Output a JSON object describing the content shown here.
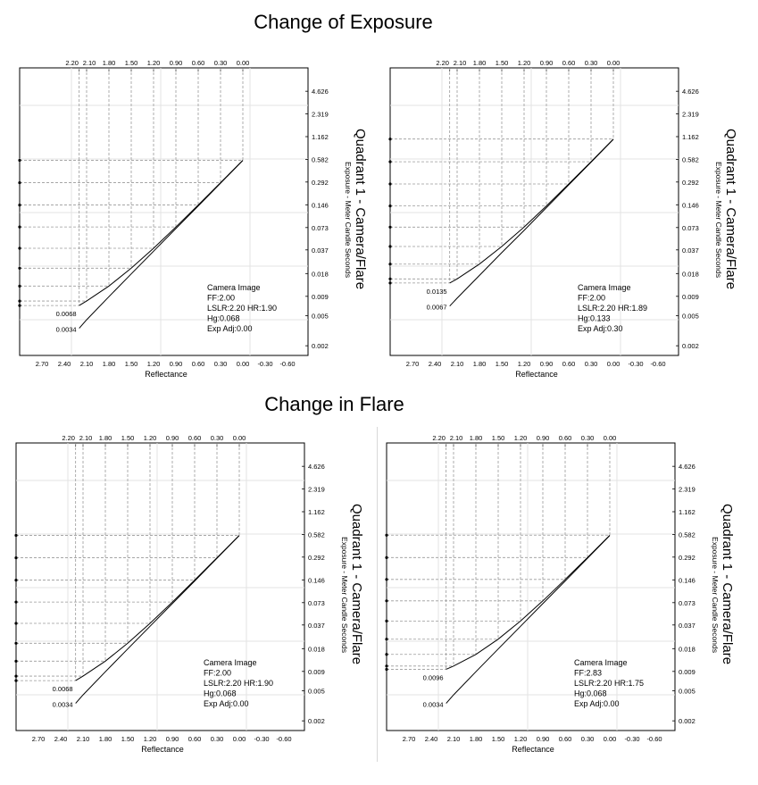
{
  "headings": {
    "top": "Change of Exposure",
    "middle": "Change in Flare"
  },
  "chart_data": [
    {
      "type": "line",
      "title": "Quadrant 1 - Camera/Flare",
      "xlabel": "Reflectance",
      "ylabel": "Exposure - Meter Candle Seconds",
      "x_axis": "reversed",
      "x_ticks_bottom": [
        "2.70",
        "2.40",
        "2.10",
        "1.80",
        "1.50",
        "1.20",
        "0.90",
        "0.60",
        "0.30",
        "0.00",
        "-0.30",
        "-0.60"
      ],
      "x_ticks_top": [
        "2.20",
        "2.10",
        "1.80",
        "1.50",
        "1.20",
        "0.90",
        "0.60",
        "0.30",
        "0.00"
      ],
      "y_scale": "log",
      "y_ticks": [
        "4.626",
        "2.319",
        "1.162",
        "0.582",
        "0.292",
        "0.146",
        "0.073",
        "0.037",
        "0.018",
        "0.009",
        "0.005",
        "0.002"
      ],
      "series": [
        {
          "x": [
            2.2,
            2.1,
            1.8,
            1.5,
            1.2,
            0.9,
            0.6,
            0.3,
            0.0
          ],
          "y": [
            0.0034,
            0.0044,
            0.0089,
            0.0178,
            0.0355,
            0.0709,
            0.141,
            0.282,
            0.563
          ]
        },
        {
          "x": [
            2.2,
            2.1,
            1.8,
            1.5,
            1.2,
            0.9,
            0.6,
            0.3,
            0.0
          ],
          "y": [
            0.0068,
            0.0078,
            0.0123,
            0.0212,
            0.0389,
            0.0743,
            0.145,
            0.286,
            0.566
          ]
        }
      ],
      "value_labels": [
        "0.0068",
        "0.0034"
      ],
      "info": [
        "Camera Image",
        "FF:2.00",
        "LSLR:2.20 HR:1.90",
        "Hg:0.068",
        "Exp Adj:0.00"
      ]
    },
    {
      "type": "line",
      "title": "Quadrant 1 - Camera/Flare",
      "xlabel": "Reflectance",
      "ylabel": "Exposure - Meter Candle Seconds",
      "x_axis": "reversed",
      "x_ticks_bottom": [
        "2.70",
        "2.40",
        "2.10",
        "1.80",
        "1.50",
        "1.20",
        "0.90",
        "0.60",
        "0.30",
        "0.00",
        "-0.30",
        "-0.60"
      ],
      "x_ticks_top": [
        "2.20",
        "2.10",
        "1.80",
        "1.50",
        "1.20",
        "0.90",
        "0.60",
        "0.30",
        "0.00"
      ],
      "y_scale": "log",
      "y_ticks": [
        "4.626",
        "2.319",
        "1.162",
        "0.582",
        "0.292",
        "0.146",
        "0.073",
        "0.037",
        "0.018",
        "0.009",
        "0.005",
        "0.002"
      ],
      "series": [
        {
          "x": [
            2.2,
            2.1,
            1.8,
            1.5,
            1.2,
            0.9,
            0.6,
            0.3,
            0.0
          ],
          "y": [
            0.0067,
            0.0085,
            0.017,
            0.034,
            0.067,
            0.134,
            0.268,
            0.534,
            1.07
          ]
        },
        {
          "x": [
            2.2,
            2.1,
            1.8,
            1.5,
            1.2,
            0.9,
            0.6,
            0.3,
            0.0
          ],
          "y": [
            0.0135,
            0.0153,
            0.024,
            0.041,
            0.074,
            0.141,
            0.275,
            0.541,
            1.08
          ]
        }
      ],
      "value_labels": [
        "0.0135",
        "0.0067"
      ],
      "info": [
        "Camera Image",
        "FF:2.00",
        "LSLR:2.20 HR:1.89",
        "Hg:0.133",
        "Exp Adj:0.30"
      ]
    },
    {
      "type": "line",
      "title": "Quadrant 1 - Camera/Flare",
      "xlabel": "Reflectance",
      "ylabel": "Exposure - Meter Candle Seconds",
      "x_axis": "reversed",
      "x_ticks_bottom": [
        "2.70",
        "2.40",
        "2.10",
        "1.80",
        "1.50",
        "1.20",
        "0.90",
        "0.60",
        "0.30",
        "0.00",
        "-0.30",
        "-0.60"
      ],
      "x_ticks_top": [
        "2.20",
        "2.10",
        "1.80",
        "1.50",
        "1.20",
        "0.90",
        "0.60",
        "0.30",
        "0.00"
      ],
      "y_scale": "log",
      "y_ticks": [
        "4.626",
        "2.319",
        "1.162",
        "0.582",
        "0.292",
        "0.146",
        "0.073",
        "0.037",
        "0.018",
        "0.009",
        "0.005",
        "0.002"
      ],
      "series": [
        {
          "x": [
            2.2,
            2.1,
            1.8,
            1.5,
            1.2,
            0.9,
            0.6,
            0.3,
            0.0
          ],
          "y": [
            0.0034,
            0.0044,
            0.0089,
            0.0178,
            0.0355,
            0.0709,
            0.141,
            0.282,
            0.563
          ]
        },
        {
          "x": [
            2.2,
            2.1,
            1.8,
            1.5,
            1.2,
            0.9,
            0.6,
            0.3,
            0.0
          ],
          "y": [
            0.0068,
            0.0078,
            0.0123,
            0.0212,
            0.0389,
            0.0743,
            0.145,
            0.286,
            0.566
          ]
        }
      ],
      "value_labels": [
        "0.0068",
        "0.0034"
      ],
      "info": [
        "Camera Image",
        "FF:2.00",
        "LSLR:2.20 HR:1.90",
        "Hg:0.068",
        "Exp Adj:0.00"
      ]
    },
    {
      "type": "line",
      "title": "Quadrant 1 - Camera/Flare",
      "xlabel": "Reflectance",
      "ylabel": "Exposure - Meter Candle Seconds",
      "x_axis": "reversed",
      "x_ticks_bottom": [
        "2.70",
        "2.40",
        "2.10",
        "1.80",
        "1.50",
        "1.20",
        "0.90",
        "0.60",
        "0.30",
        "0.00",
        "-0.30",
        "-0.60"
      ],
      "x_ticks_top": [
        "2.20",
        "2.10",
        "1.80",
        "1.50",
        "1.20",
        "0.90",
        "0.60",
        "0.30",
        "0.00"
      ],
      "y_scale": "log",
      "y_ticks": [
        "4.626",
        "2.319",
        "1.162",
        "0.582",
        "0.292",
        "0.146",
        "0.073",
        "0.037",
        "0.018",
        "0.009",
        "0.005",
        "0.002"
      ],
      "series": [
        {
          "x": [
            2.2,
            2.1,
            1.8,
            1.5,
            1.2,
            0.9,
            0.6,
            0.3,
            0.0
          ],
          "y": [
            0.0034,
            0.0044,
            0.0089,
            0.0178,
            0.0355,
            0.0709,
            0.141,
            0.282,
            0.563
          ]
        },
        {
          "x": [
            2.2,
            2.1,
            1.8,
            1.5,
            1.2,
            0.9,
            0.6,
            0.3,
            0.0
          ],
          "y": [
            0.0096,
            0.0106,
            0.0151,
            0.024,
            0.0417,
            0.0771,
            0.148,
            0.288,
            0.569
          ]
        }
      ],
      "value_labels": [
        "0.0096",
        "0.0034"
      ],
      "info": [
        "Camera Image",
        "FF:2.83",
        "LSLR:2.20 HR:1.75",
        "Hg:0.068",
        "Exp Adj:0.00"
      ]
    }
  ]
}
